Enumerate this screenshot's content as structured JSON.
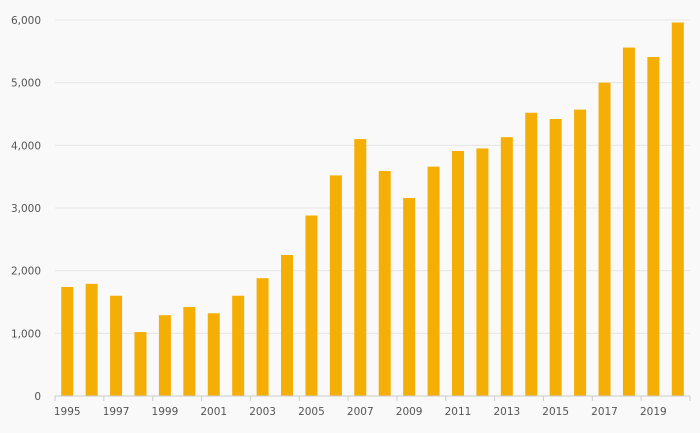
{
  "chart_data": {
    "type": "bar",
    "title": "",
    "xlabel": "",
    "ylabel": "",
    "categories": [
      "1995",
      "1996",
      "1997",
      "1998",
      "1999",
      "2000",
      "2001",
      "2002",
      "2003",
      "2004",
      "2005",
      "2006",
      "2007",
      "2008",
      "2009",
      "2010",
      "2011",
      "2012",
      "2013",
      "2014",
      "2015",
      "2016",
      "2017",
      "2018",
      "2019",
      "2020"
    ],
    "x_tick_labels": [
      "1995",
      "1997",
      "1999",
      "2001",
      "2003",
      "2005",
      "2007",
      "2009",
      "2011",
      "2013",
      "2015",
      "2017",
      "2019"
    ],
    "values": [
      1740,
      1790,
      1600,
      1020,
      1290,
      1420,
      1320,
      1600,
      1880,
      2250,
      2880,
      3520,
      4100,
      3590,
      3160,
      3660,
      3910,
      3950,
      4130,
      4520,
      4420,
      4570,
      5000,
      5560,
      5410,
      5960
    ],
    "ylim": [
      0,
      6000
    ],
    "y_ticks": [
      0,
      1000,
      2000,
      3000,
      4000,
      5000,
      6000
    ],
    "y_tick_labels": [
      "0",
      "1,000",
      "2,000",
      "3,000",
      "4,000",
      "5,000",
      "6,000"
    ],
    "grid": true,
    "legend": "none",
    "colors": {
      "bar": "#f5ae05",
      "grid": "#e6e6e6",
      "axis": "#cccccc",
      "text": "#555555",
      "background": "#f9f9f9"
    }
  }
}
